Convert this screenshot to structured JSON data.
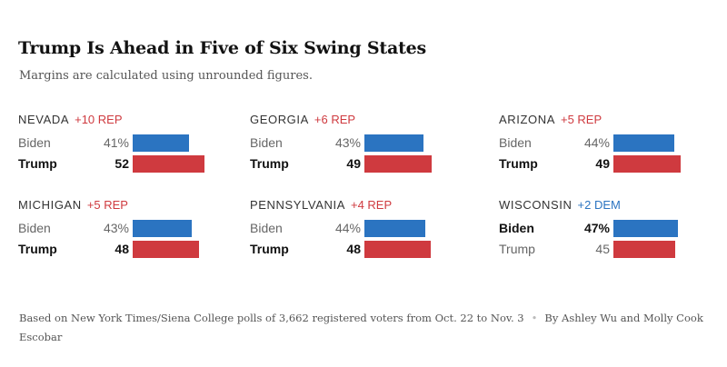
{
  "header": {
    "title": "Trump Is Ahead in Five of Six Swing States",
    "subtitle": "Margins are calculated using unrounded figures."
  },
  "colors": {
    "dem": "#2B74C1",
    "rep": "#CF3A3F"
  },
  "chart_data": {
    "type": "bar",
    "panels": [
      {
        "state": "NEVADA",
        "margin": "+10 REP",
        "margin_party": "rep",
        "winner": "Trump",
        "rows": [
          {
            "name": "Biden",
            "party": "dem",
            "value": 41,
            "label": "41%"
          },
          {
            "name": "Trump",
            "party": "rep",
            "value": 52,
            "label": "52"
          }
        ]
      },
      {
        "state": "GEORGIA",
        "margin": "+6 REP",
        "margin_party": "rep",
        "winner": "Trump",
        "rows": [
          {
            "name": "Biden",
            "party": "dem",
            "value": 43,
            "label": "43%"
          },
          {
            "name": "Trump",
            "party": "rep",
            "value": 49,
            "label": "49"
          }
        ]
      },
      {
        "state": "ARIZONA",
        "margin": "+5 REP",
        "margin_party": "rep",
        "winner": "Trump",
        "rows": [
          {
            "name": "Biden",
            "party": "dem",
            "value": 44,
            "label": "44%"
          },
          {
            "name": "Trump",
            "party": "rep",
            "value": 49,
            "label": "49"
          }
        ]
      },
      {
        "state": "MICHIGAN",
        "margin": "+5 REP",
        "margin_party": "rep",
        "winner": "Trump",
        "rows": [
          {
            "name": "Biden",
            "party": "dem",
            "value": 43,
            "label": "43%"
          },
          {
            "name": "Trump",
            "party": "rep",
            "value": 48,
            "label": "48"
          }
        ]
      },
      {
        "state": "PENNSYLVANIA",
        "margin": "+4 REP",
        "margin_party": "rep",
        "winner": "Trump",
        "rows": [
          {
            "name": "Biden",
            "party": "dem",
            "value": 44,
            "label": "44%"
          },
          {
            "name": "Trump",
            "party": "rep",
            "value": 48,
            "label": "48"
          }
        ]
      },
      {
        "state": "WISCONSIN",
        "margin": "+2 DEM",
        "margin_party": "dem",
        "winner": "Biden",
        "rows": [
          {
            "name": "Biden",
            "party": "dem",
            "value": 47,
            "label": "47%"
          },
          {
            "name": "Trump",
            "party": "rep",
            "value": 45,
            "label": "45"
          }
        ]
      }
    ]
  },
  "footer": {
    "source": "Based on New York Times/Siena College polls of 3,662 registered voters from Oct. 22 to Nov. 3",
    "separator": "•",
    "byline": "By Ashley Wu and Molly Cook Escobar"
  }
}
